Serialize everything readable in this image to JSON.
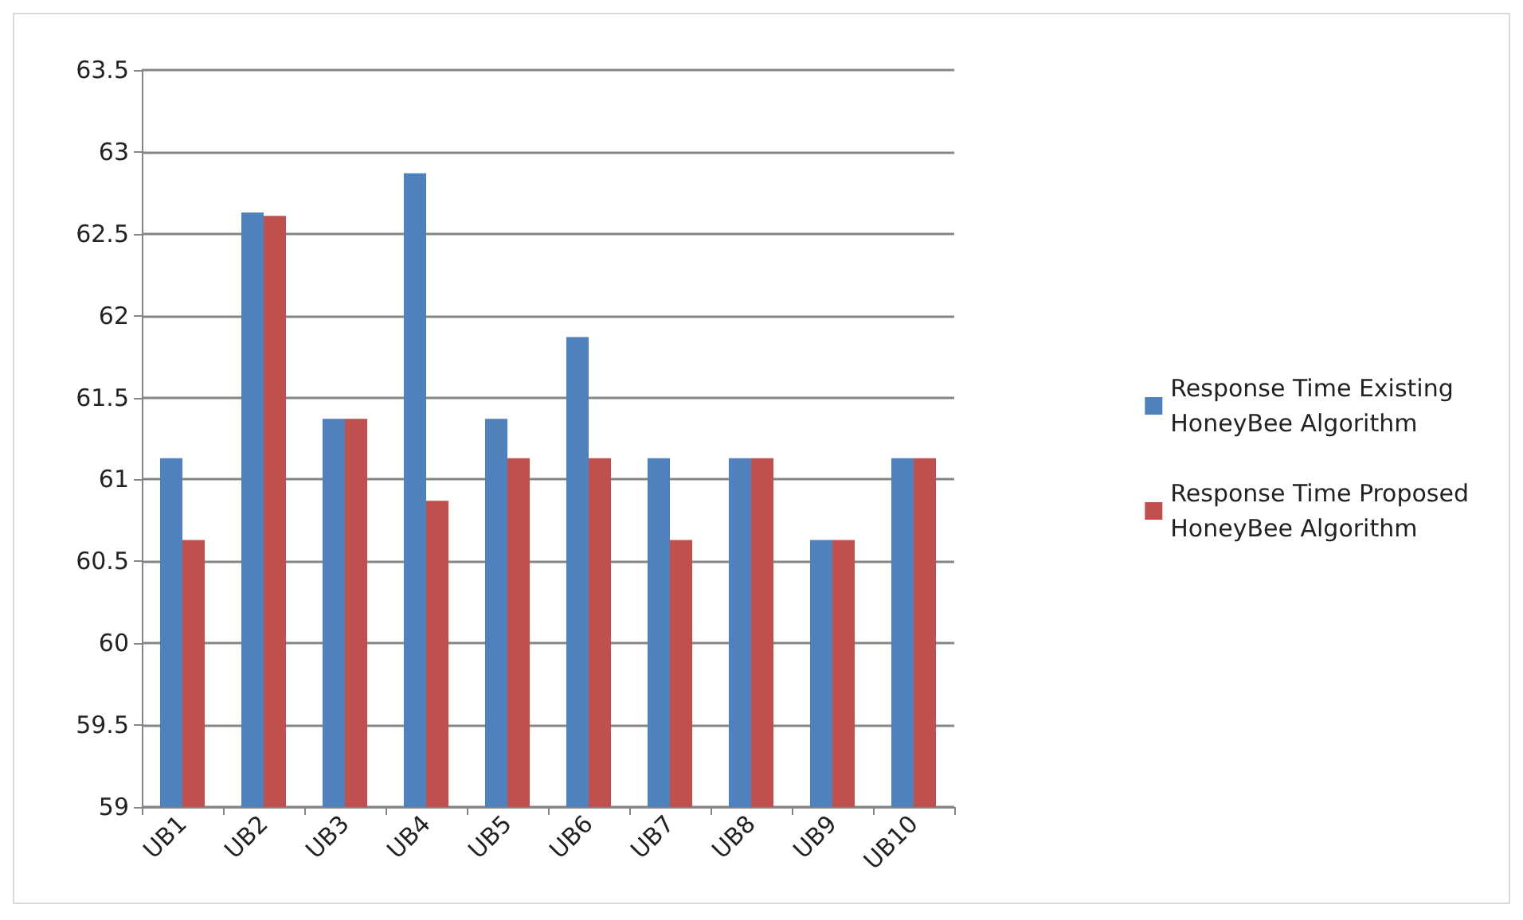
{
  "chart_data": {
    "type": "bar",
    "categories": [
      "UB1",
      "UB2",
      "UB3",
      "UB4",
      "UB5",
      "UB6",
      "UB7",
      "UB8",
      "UB9",
      "UB10"
    ],
    "series": [
      {
        "name": "Response Time Existing HoneyBee Algorithm",
        "color": "#4f81bd",
        "values": [
          61.13,
          62.63,
          61.37,
          62.87,
          61.37,
          61.87,
          61.13,
          61.13,
          60.63,
          61.13
        ]
      },
      {
        "name": "Response Time Proposed HoneyBee Algorithm",
        "color": "#c0504d",
        "values": [
          60.63,
          62.61,
          61.37,
          60.87,
          61.13,
          61.13,
          60.63,
          61.13,
          60.63,
          61.13
        ]
      }
    ],
    "ylim": [
      59,
      63.5
    ],
    "yticks": [
      59,
      59.5,
      60,
      60.5,
      61,
      61.5,
      62,
      62.5,
      63,
      63.5
    ],
    "grid": "y",
    "legend": "right"
  }
}
